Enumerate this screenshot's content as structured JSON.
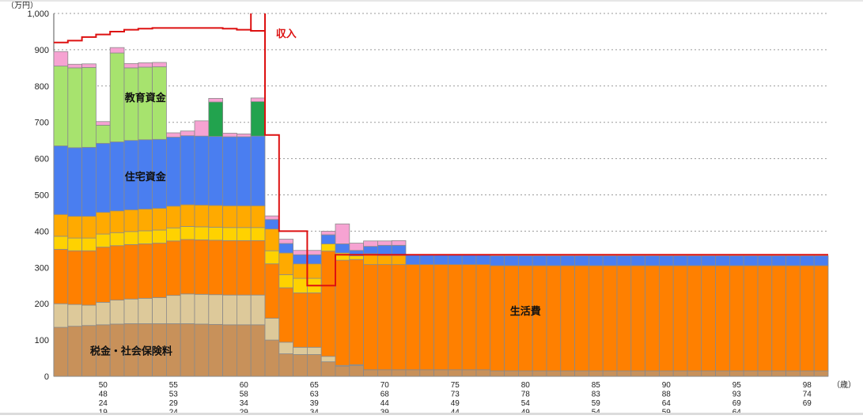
{
  "chart_data": {
    "type": "bar",
    "stacked": true,
    "y_unit_label": "（万円）",
    "x_unit_label": "（歳）",
    "ylim": [
      0,
      1000
    ],
    "yticks": [
      0,
      100,
      200,
      300,
      400,
      500,
      600,
      700,
      800,
      900,
      1000
    ],
    "ytick_labels": [
      "0",
      "100",
      "200",
      "300",
      "400",
      "500",
      "600",
      "700",
      "800",
      "900",
      "1,000"
    ],
    "grid": "dotted-horizontal",
    "bar_count": 55,
    "x_tick_groups": [
      {
        "bar": 3,
        "labels": [
          "50",
          "48",
          "24",
          "19"
        ]
      },
      {
        "bar": 8,
        "labels": [
          "55",
          "53",
          "29",
          "24"
        ]
      },
      {
        "bar": 13,
        "labels": [
          "60",
          "58",
          "34",
          "29"
        ]
      },
      {
        "bar": 18,
        "labels": [
          "65",
          "63",
          "39",
          "34"
        ]
      },
      {
        "bar": 23,
        "labels": [
          "70",
          "68",
          "44",
          "39"
        ]
      },
      {
        "bar": 28,
        "labels": [
          "75",
          "73",
          "49",
          "44"
        ]
      },
      {
        "bar": 33,
        "labels": [
          "80",
          "78",
          "54",
          "49"
        ]
      },
      {
        "bar": 38,
        "labels": [
          "85",
          "83",
          "59",
          "54"
        ]
      },
      {
        "bar": 43,
        "labels": [
          "90",
          "88",
          "64",
          "59"
        ]
      },
      {
        "bar": 48,
        "labels": [
          "95",
          "93",
          "69",
          "64"
        ]
      },
      {
        "bar": 53,
        "labels": [
          "98",
          "74",
          "69",
          ""
        ]
      }
    ],
    "colors": {
      "tax": "#c8915a",
      "beige": "#ddc99a",
      "living": "#ff8000",
      "yellow": "#ffd200",
      "amber": "#ffaa00",
      "housing": "#4a7ef0",
      "education": "#a7e36e",
      "darkgreen": "#22a34e",
      "pink": "#f6a3d2",
      "income_line": "#dd1111",
      "bar_edge": "#8a8a8a",
      "grid": "#9a9a9a"
    },
    "series_order": [
      "tax",
      "beige",
      "living",
      "yellow",
      "amber",
      "housing",
      "education",
      "darkgreen",
      "pink"
    ],
    "series": [
      {
        "key": "tax",
        "values": [
          135,
          138,
          140,
          142,
          144,
          145,
          145,
          145,
          145,
          145,
          144,
          143,
          142,
          142,
          142,
          100,
          62,
          60,
          60,
          40,
          28,
          30,
          18,
          18,
          18,
          18,
          18,
          18,
          18,
          18,
          18,
          15,
          15,
          15,
          15,
          15,
          15,
          15,
          15,
          15,
          15,
          15,
          15,
          15,
          15,
          15,
          15,
          15,
          15,
          15,
          15,
          15,
          15,
          15,
          15
        ]
      },
      {
        "key": "beige",
        "values": [
          65,
          60,
          56,
          62,
          66,
          68,
          70,
          72,
          78,
          82,
          82,
          82,
          82,
          82,
          82,
          60,
          32,
          20,
          20,
          15,
          2,
          2,
          0,
          0,
          0,
          0,
          0,
          0,
          0,
          0,
          0,
          0,
          0,
          0,
          0,
          0,
          0,
          0,
          0,
          0,
          0,
          0,
          0,
          0,
          0,
          0,
          0,
          0,
          0,
          0,
          0,
          0,
          0,
          0,
          0
        ]
      },
      {
        "key": "living",
        "values": [
          150,
          148,
          150,
          152,
          150,
          150,
          150,
          150,
          150,
          150,
          150,
          150,
          150,
          150,
          150,
          150,
          150,
          150,
          150,
          290,
          290,
          290,
          290,
          290,
          290,
          290,
          290,
          290,
          290,
          290,
          290,
          290,
          290,
          290,
          290,
          290,
          290,
          290,
          290,
          290,
          290,
          290,
          290,
          290,
          290,
          290,
          290,
          290,
          290,
          290,
          290,
          290,
          290,
          290,
          290
        ]
      },
      {
        "key": "yellow",
        "values": [
          36,
          35,
          35,
          36,
          36,
          36,
          36,
          36,
          36,
          36,
          36,
          36,
          36,
          36,
          36,
          36,
          36,
          40,
          40,
          20,
          20,
          10,
          0,
          0,
          0,
          0,
          0,
          0,
          0,
          0,
          0,
          0,
          0,
          0,
          0,
          0,
          0,
          0,
          0,
          0,
          0,
          0,
          0,
          0,
          0,
          0,
          0,
          0,
          0,
          0,
          0,
          0,
          0,
          0,
          0
        ]
      },
      {
        "key": "amber",
        "values": [
          60,
          60,
          60,
          60,
          60,
          60,
          60,
          60,
          60,
          60,
          60,
          60,
          60,
          60,
          60,
          60,
          60,
          40,
          40,
          0,
          0,
          0,
          30,
          25,
          25,
          0,
          0,
          0,
          0,
          0,
          0,
          0,
          0,
          0,
          0,
          0,
          0,
          0,
          0,
          0,
          0,
          0,
          0,
          0,
          0,
          0,
          0,
          0,
          0,
          0,
          0,
          0,
          0,
          0,
          0
        ]
      },
      {
        "key": "housing",
        "values": [
          189,
          189,
          190,
          190,
          190,
          191,
          191,
          190,
          190,
          190,
          190,
          190,
          190,
          190,
          192,
          26,
          26,
          25,
          25,
          25,
          25,
          15,
          20,
          28,
          28,
          27,
          27,
          27,
          27,
          27,
          27,
          27,
          27,
          27,
          27,
          27,
          27,
          27,
          27,
          27,
          27,
          27,
          27,
          27,
          27,
          27,
          27,
          27,
          27,
          27,
          27,
          27,
          27,
          27,
          27
        ]
      },
      {
        "key": "education",
        "values": [
          220,
          220,
          220,
          50,
          245,
          200,
          200,
          200,
          0,
          0,
          0,
          0,
          0,
          0,
          0,
          0,
          0,
          0,
          0,
          0,
          0,
          0,
          0,
          0,
          0,
          0,
          0,
          0,
          0,
          0,
          0,
          0,
          0,
          0,
          0,
          0,
          0,
          0,
          0,
          0,
          0,
          0,
          0,
          0,
          0,
          0,
          0,
          0,
          0,
          0,
          0,
          0,
          0,
          0,
          0
        ]
      },
      {
        "key": "darkgreen",
        "values": [
          0,
          0,
          0,
          0,
          0,
          0,
          0,
          0,
          0,
          0,
          0,
          95,
          0,
          0,
          95,
          0,
          0,
          0,
          0,
          0,
          0,
          0,
          0,
          0,
          0,
          0,
          0,
          0,
          0,
          0,
          0,
          0,
          0,
          0,
          0,
          0,
          0,
          0,
          0,
          0,
          0,
          0,
          0,
          0,
          0,
          0,
          0,
          0,
          0,
          0,
          0,
          0,
          0,
          0,
          0
        ]
      },
      {
        "key": "pink",
        "values": [
          40,
          10,
          10,
          10,
          15,
          12,
          12,
          12,
          12,
          13,
          42,
          10,
          10,
          8,
          10,
          10,
          12,
          12,
          12,
          10,
          55,
          20,
          15,
          12,
          13,
          0,
          0,
          0,
          0,
          0,
          0,
          0,
          0,
          0,
          0,
          0,
          0,
          0,
          0,
          0,
          0,
          0,
          0,
          0,
          0,
          0,
          0,
          0,
          0,
          0,
          0,
          0,
          0,
          0,
          0
        ]
      }
    ],
    "income": [
      920,
      925,
      935,
      942,
      950,
      955,
      958,
      960,
      960,
      960,
      960,
      960,
      958,
      955,
      952,
      665,
      400,
      400,
      250,
      250,
      335,
      335,
      335,
      335,
      335,
      335,
      335,
      335,
      335,
      335,
      335,
      335,
      335,
      335,
      335,
      335,
      335,
      335,
      335,
      335,
      335,
      335,
      335,
      335,
      335,
      335,
      335,
      335,
      335,
      335,
      335,
      335,
      335,
      335,
      335
    ],
    "annotations": [
      {
        "text": "収入",
        "bar": 16,
        "value": 935,
        "color": "#dd1111",
        "weight": "bold"
      },
      {
        "text": "教育資金",
        "bar": 6,
        "value": 758,
        "color": "#111111",
        "weight": "bold"
      },
      {
        "text": "住宅資金",
        "bar": 6,
        "value": 540,
        "color": "#111111",
        "weight": "bold"
      },
      {
        "text": "生活費",
        "bar": 33,
        "value": 170,
        "color": "#111111",
        "weight": "bold"
      },
      {
        "text": "税金・社会保険料",
        "bar": 5,
        "value": 60,
        "color": "#111111",
        "weight": "bold"
      }
    ]
  }
}
